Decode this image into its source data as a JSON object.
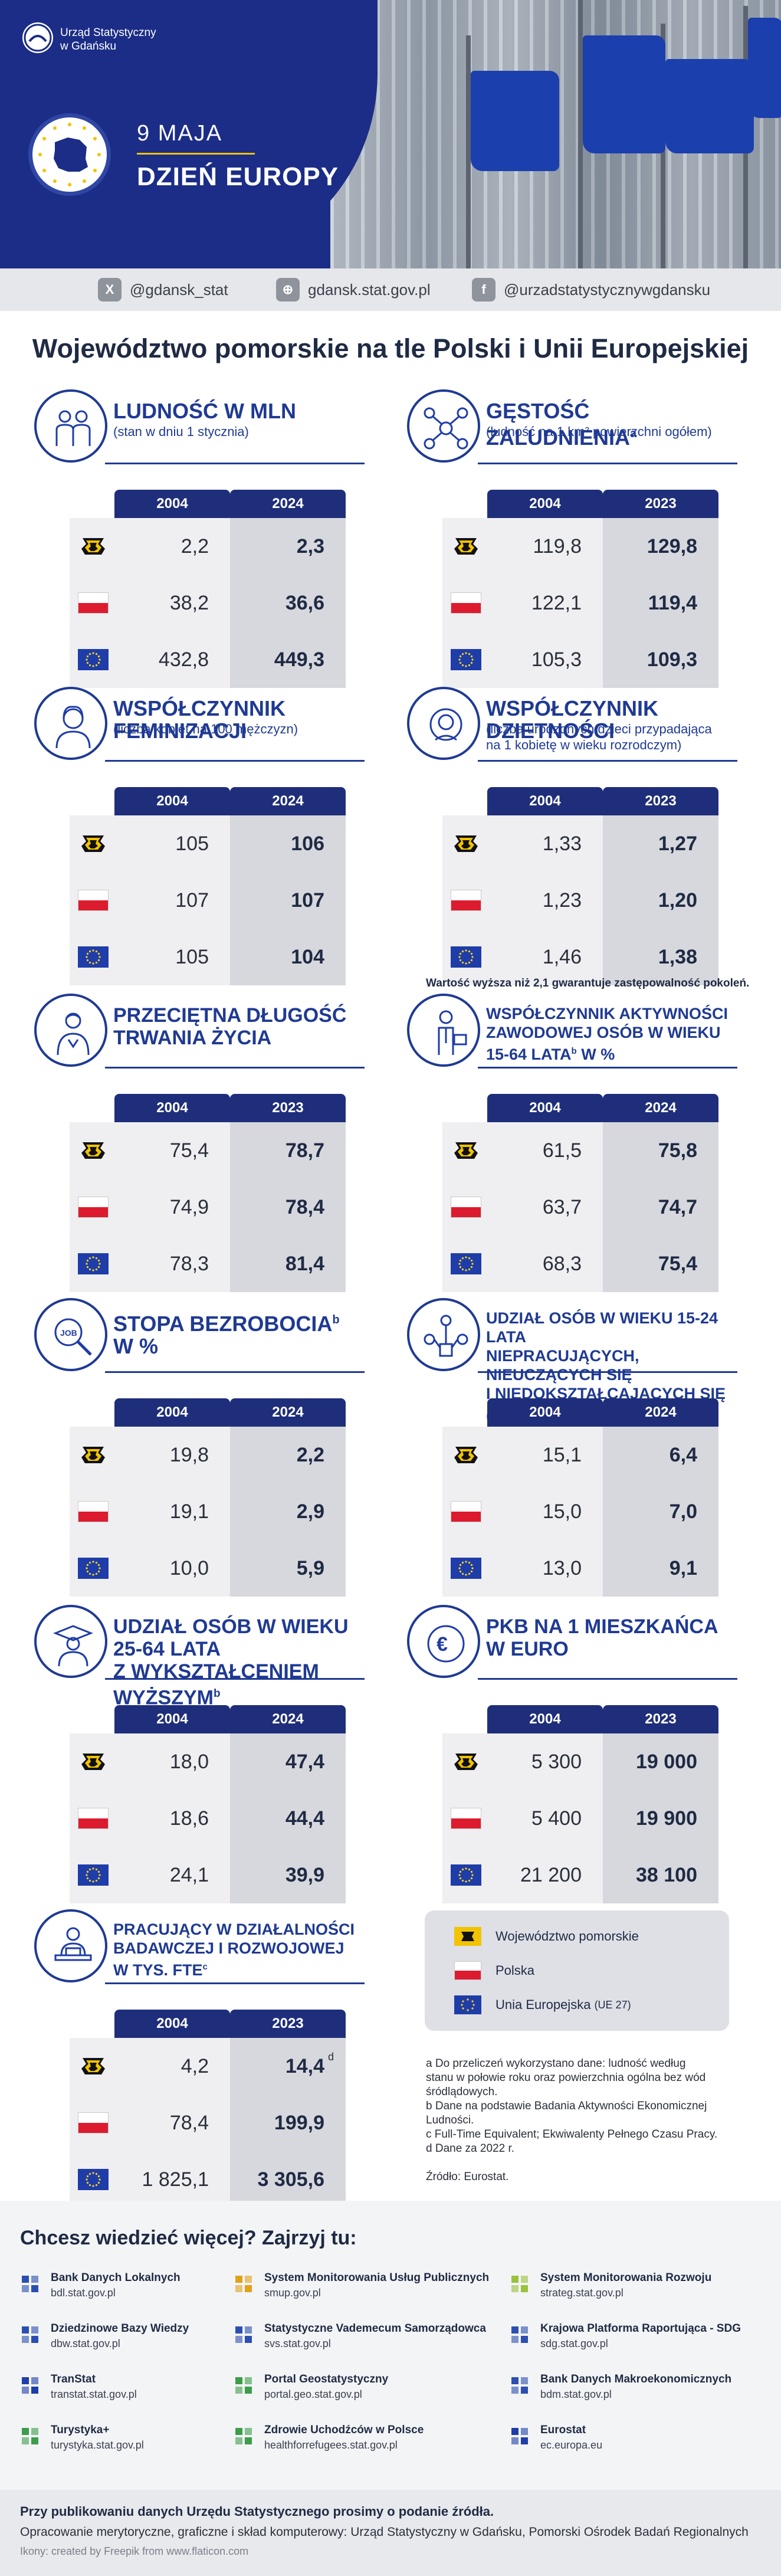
{
  "header": {
    "institution": [
      "Urząd Statystyczny",
      "w Gdańsku"
    ],
    "date": "9 MAJA",
    "title": "DZIEŃ EUROPY"
  },
  "social": {
    "twitter": "@gdansk_stat",
    "web": "gdansk.stat.gov.pl",
    "facebook": "@urzadstatystycznywgdansku"
  },
  "main_title": "Województwo pomorskie na tle Polski i Unii Europejskiej",
  "panels": [
    {
      "title_lines": [
        "LUDNOŚĆ W MLN"
      ],
      "subtitle_lines": [
        "(stan w dniu 1 stycznia)"
      ],
      "years": [
        "2004",
        "2024"
      ],
      "rows": [
        [
          "2,2",
          "2,3"
        ],
        [
          "38,2",
          "36,6"
        ],
        [
          "432,8",
          "449,3"
        ]
      ]
    },
    {
      "title_lines": [
        "GĘSTOŚĆ ZALUDNIENIA"
      ],
      "title_sup": "a",
      "subtitle_lines": [
        "(ludność na 1 km² powierzchni ogółem)"
      ],
      "years": [
        "2004",
        "2023"
      ],
      "rows": [
        [
          "119,8",
          "129,8"
        ],
        [
          "122,1",
          "119,4"
        ],
        [
          "105,3",
          "109,3"
        ]
      ]
    },
    {
      "title_lines": [
        "WSPÓŁCZYNNIK FEMINIZACJI"
      ],
      "subtitle_lines": [
        "(liczba kobiet na 100 mężczyzn)"
      ],
      "years": [
        "2004",
        "2024"
      ],
      "rows": [
        [
          "105",
          "106"
        ],
        [
          "107",
          "107"
        ],
        [
          "105",
          "104"
        ]
      ]
    },
    {
      "title_lines": [
        "WSPÓŁCZYNNIK DZIETNOŚCI"
      ],
      "subtitle_lines": [
        "(liczba urodzonych dzieci przypadająca",
        "na 1 kobietę w wieku rozrodczym)"
      ],
      "years": [
        "2004",
        "2023"
      ],
      "rows": [
        [
          "1,33",
          "1,27"
        ],
        [
          "1,23",
          "1,20"
        ],
        [
          "1,46",
          "1,38"
        ]
      ]
    },
    {
      "title_lines": [
        "PRZECIĘTNA DŁUGOŚĆ",
        "TRWANIA ŻYCIA"
      ],
      "subtitle_lines": [],
      "years": [
        "2004",
        "2023"
      ],
      "rows": [
        [
          "75,4",
          "78,7"
        ],
        [
          "74,9",
          "78,4"
        ],
        [
          "78,3",
          "81,4"
        ]
      ]
    },
    {
      "title_lines": [
        "WSPÓŁCZYNNIK AKTYWNOŚCI",
        "ZAWODOWEJ OSÓB W WIEKU",
        "15-64 LATA"
      ],
      "title_tail": "W %",
      "title_sup": "b",
      "subtitle_lines": [],
      "years": [
        "2004",
        "2024"
      ],
      "rows": [
        [
          "61,5",
          "75,8"
        ],
        [
          "63,7",
          "74,7"
        ],
        [
          "68,3",
          "75,4"
        ]
      ]
    },
    {
      "title_lines": [
        "STOPA BEZROBOCIA"
      ],
      "title_tail": "W %",
      "title_sup": "b",
      "subtitle_lines": [],
      "years": [
        "2004",
        "2024"
      ],
      "rows": [
        [
          "19,8",
          "2,2"
        ],
        [
          "19,1",
          "2,9"
        ],
        [
          "10,0",
          "5,9"
        ]
      ]
    },
    {
      "title_lines": [
        "UDZIAŁ OSÓB W WIEKU 15-24 LATA",
        "NIEPRACUJĄCYCH, NIEUCZĄCYCH SIĘ",
        "I NIEDOKSZTAŁCAJĄCYCH SIĘ (NEET)"
      ],
      "title_sup": "b",
      "subtitle_lines": [],
      "years": [
        "2004",
        "2024"
      ],
      "rows": [
        [
          "15,1",
          "6,4"
        ],
        [
          "15,0",
          "7,0"
        ],
        [
          "13,0",
          "9,1"
        ]
      ]
    },
    {
      "title_lines": [
        "UDZIAŁ OSÓB W WIEKU 25-64 LATA",
        "Z WYKSZTAŁCENIEM WYŻSZYM"
      ],
      "title_sup": "b",
      "subtitle_lines": [],
      "years": [
        "2004",
        "2024"
      ],
      "rows": [
        [
          "18,0",
          "47,4"
        ],
        [
          "18,6",
          "44,4"
        ],
        [
          "24,1",
          "39,9"
        ]
      ]
    },
    {
      "title_lines": [
        "PKB NA 1 MIESZKAŃCA",
        "W EURO"
      ],
      "subtitle_lines": [],
      "years": [
        "2004",
        "2023"
      ],
      "rows": [
        [
          "5 300",
          "19 000"
        ],
        [
          "5 400",
          "19 900"
        ],
        [
          "21 200",
          "38 100"
        ]
      ]
    },
    {
      "title_lines": [
        "PRACUJĄCY W DZIAŁALNOŚCI",
        "BADAWCZEJ I ROZWOJOWEJ",
        "W TYS. FTE"
      ],
      "title_sup": "c",
      "value_sup": "d",
      "subtitle_lines": [],
      "years": [
        "2004",
        "2023"
      ],
      "rows": [
        [
          "4,2",
          "14,4"
        ],
        [
          "78,4",
          "199,9"
        ],
        [
          "1 825,1",
          "3 305,6"
        ]
      ]
    }
  ],
  "tfr_note": "Wartość wyższa niż 2,1 gwarantuje zastępowalność pokoleń.",
  "legend": {
    "pomorskie": "Województwo pomorskie",
    "polska": "Polska",
    "ue": "Unia Europejska",
    "ue_suffix": "(UE 27)"
  },
  "footnotes": [
    "a Do przeliczeń wykorzystano dane: ludność według",
    "stanu w połowie roku oraz powierzchnia ogólna bez wód",
    "śródlądowych.",
    "b Dane na podstawie Badania Aktywności Ekonomicznej",
    "Ludności.",
    "c Full-Time Equivalent; Ekwiwalenty Pełnego Czasu Pracy.",
    "d Dane za 2022 r.",
    "",
    "Źródło: Eurostat."
  ],
  "more": {
    "title": "Chcesz wiedzieć więcej? Zajrzyj tu:",
    "links": [
      {
        "name": "Bank Danych Lokalnych",
        "url": "bdl.stat.gov.pl",
        "icon": "bdl-icon",
        "color": "#2b4fb0"
      },
      {
        "name": "System Monitorowania Usług Publicznych",
        "url": "smup.gov.pl",
        "icon": "smup-icon",
        "color": "#e0a21a"
      },
      {
        "name": "System Monitorowania Rozwoju",
        "url": "strateg.stat.gov.pl",
        "icon": "strateg-icon",
        "color": "#9ac23c"
      },
      {
        "name": "Dziedzinowe Bazy Wiedzy",
        "url": "dbw.stat.gov.pl",
        "icon": "dbw-icon",
        "color": "#2b4fb0"
      },
      {
        "name": "Statystyczne Vademecum Samorządowca",
        "url": "svs.stat.gov.pl",
        "icon": "svs-icon",
        "color": "#2b4fb0"
      },
      {
        "name": "Krajowa Platforma Raportująca - SDG",
        "url": "sdg.stat.gov.pl",
        "icon": "sdg-icon",
        "color": "#2b4fb0"
      },
      {
        "name": "TranStat",
        "url": "transtat.stat.gov.pl",
        "icon": "transtat-icon",
        "color": "#1f3da8"
      },
      {
        "name": "Portal Geostatystyczny",
        "url": "portal.geo.stat.gov.pl",
        "icon": "geo-icon",
        "color": "#3c9d4a"
      },
      {
        "name": "Bank Danych Makroekonomicznych",
        "url": "bdm.stat.gov.pl",
        "icon": "bdm-icon",
        "color": "#2b4fb0"
      },
      {
        "name": "Turystyka+",
        "url": "turystyka.stat.gov.pl",
        "icon": "turystyka-icon",
        "color": "#3c9d4a"
      },
      {
        "name": "Zdrowie Uchodźców w Polsce",
        "url": "healthforrefugees.stat.gov.pl",
        "icon": "health-icon",
        "color": "#3c9d4a"
      },
      {
        "name": "Eurostat",
        "url": "ec.europa.eu",
        "icon": "eurostat-icon",
        "color": "#1f3da8"
      }
    ]
  },
  "bottom": {
    "line1": "Przy publikowaniu danych Urzędu Statystycznego prosimy o podanie źródła.",
    "line2": "Opracowanie merytoryczne, graficzne i skład komputerowy: Urząd Statystyczny w Gdańsku, Pomorski Ośrodek Badań Regionalnych",
    "line3": "Ikony: created by Freepik from www.flaticon.com"
  }
}
